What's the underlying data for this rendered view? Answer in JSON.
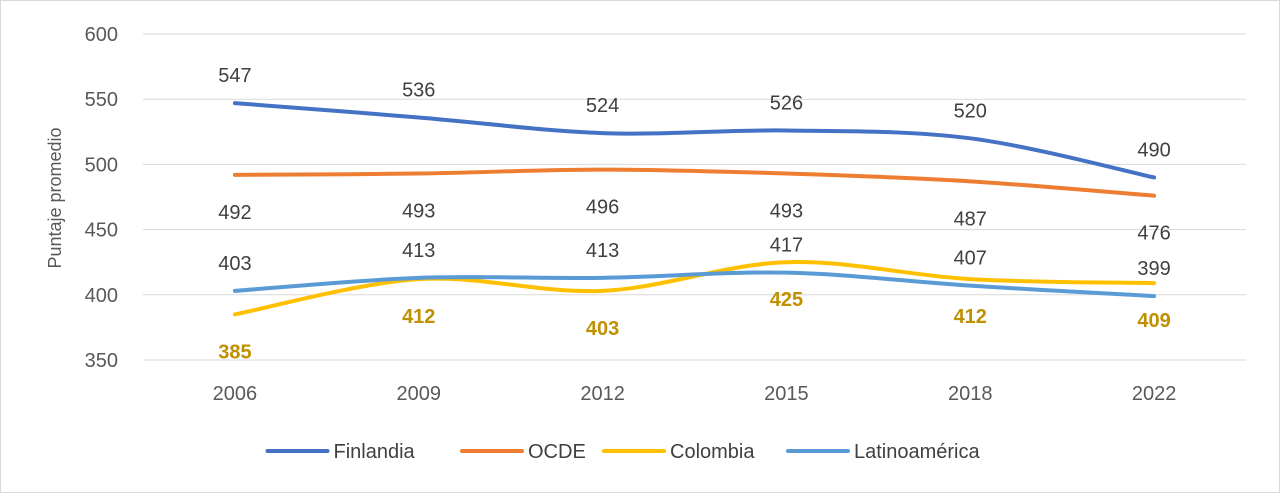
{
  "chart_data": {
    "type": "line",
    "title": "",
    "xlabel": "",
    "ylabel": "Puntaje promedio",
    "ylim": [
      350,
      600
    ],
    "yticks": [
      350,
      400,
      450,
      500,
      550,
      600
    ],
    "grid": true,
    "legend_position": "bottom",
    "categories": [
      "2006",
      "2009",
      "2012",
      "2015",
      "2018",
      "2022"
    ],
    "series": [
      {
        "name": "Finlandia",
        "color": "#4472C4",
        "values": [
          547,
          536,
          524,
          526,
          520,
          490
        ],
        "label_position": "above",
        "label_color": "#404040",
        "label_bold": false
      },
      {
        "name": "OCDE",
        "color": "#ED7D31",
        "values": [
          492,
          493,
          496,
          493,
          487,
          476
        ],
        "label_position": "below",
        "label_color": "#404040",
        "label_bold": false
      },
      {
        "name": "Colombia",
        "color": "#FFC000",
        "values": [
          385,
          412,
          403,
          425,
          412,
          409
        ],
        "label_position": "below",
        "label_color": "#BF9000",
        "label_bold": true
      },
      {
        "name": "Latinoamérica",
        "color": "#5B9BD5",
        "values": [
          403,
          413,
          413,
          417,
          407,
          399
        ],
        "label_position": "above",
        "label_color": "#404040",
        "label_bold": false
      }
    ]
  }
}
